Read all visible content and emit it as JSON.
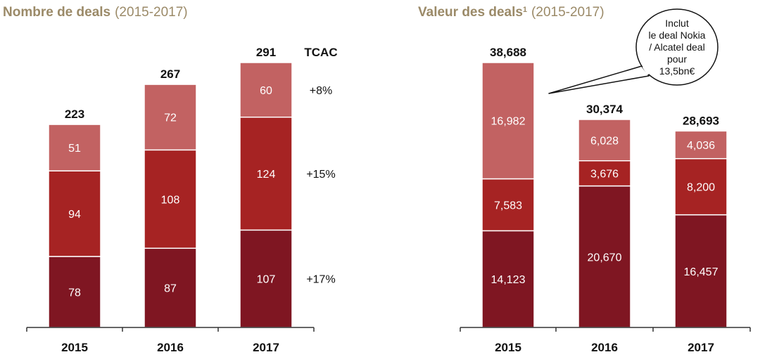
{
  "colors": {
    "title": "#9b8a68",
    "segment_light": "#c26262",
    "segment_mid": "#a62323",
    "segment_dark": "#7f1622",
    "axis": "#333333"
  },
  "chart_data": [
    {
      "type": "bar",
      "stacked": true,
      "title": "Nombre de deals",
      "subtitle": "(2015-2017)",
      "categories": [
        "2015",
        "2016",
        "2017"
      ],
      "totals": [
        "223",
        "267",
        "291"
      ],
      "ylim": [
        0,
        300
      ],
      "series": [
        {
          "color_key": "segment_dark",
          "values": [
            78,
            87,
            107
          ],
          "labels": [
            "78",
            "87",
            "107"
          ]
        },
        {
          "color_key": "segment_mid",
          "values": [
            94,
            108,
            124
          ],
          "labels": [
            "94",
            "108",
            "124"
          ]
        },
        {
          "color_key": "segment_light",
          "values": [
            51,
            72,
            60
          ],
          "labels": [
            "51",
            "72",
            "60"
          ]
        }
      ],
      "cagr": {
        "heading": "TCAC",
        "values": [
          "+17%",
          "+15%",
          "+8%"
        ]
      }
    },
    {
      "type": "bar",
      "stacked": true,
      "title": "Valeur des deals",
      "title_superscript": "1",
      "subtitle": "(2015-2017)",
      "categories": [
        "2015",
        "2016",
        "2017"
      ],
      "totals": [
        "38,688",
        "30,374",
        "28,693"
      ],
      "ylim": [
        0,
        40000
      ],
      "series": [
        {
          "color_key": "segment_dark",
          "values": [
            14123,
            20670,
            16457
          ],
          "labels": [
            "14,123",
            "20,670",
            "16,457"
          ]
        },
        {
          "color_key": "segment_mid",
          "values": [
            7583,
            3676,
            8200
          ],
          "labels": [
            "7,583",
            "3,676",
            "8,200"
          ]
        },
        {
          "color_key": "segment_light",
          "values": [
            16982,
            6028,
            4036
          ],
          "labels": [
            "16,982",
            "6,028",
            "4,036"
          ]
        }
      ],
      "annotation": {
        "lines": [
          "Inclut",
          "le deal Nokia",
          "/ Alcatel deal",
          "pour",
          "13,5bn€"
        ]
      }
    }
  ]
}
